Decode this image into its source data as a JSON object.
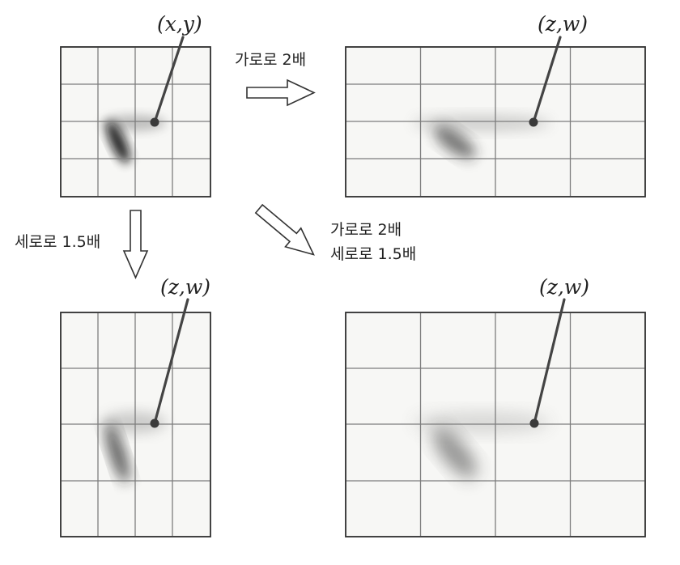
{
  "panels": {
    "original": {
      "label": "(x,y)"
    },
    "horizontal": {
      "label": "(z,w)"
    },
    "vertical": {
      "label": "(z,w)"
    },
    "both": {
      "label": "(z,w)"
    }
  },
  "arrows": {
    "horizontal": {
      "label": "가로로 2배"
    },
    "vertical": {
      "label": "세로로 1.5배"
    },
    "diagonal": {
      "line1": "가로로 2배",
      "line2": "세로로 1.5배"
    }
  },
  "colors": {
    "grid": "#7d7d7d",
    "frame": "#333333",
    "background": "#f7f7f5",
    "blob": "#1a1a1a"
  }
}
